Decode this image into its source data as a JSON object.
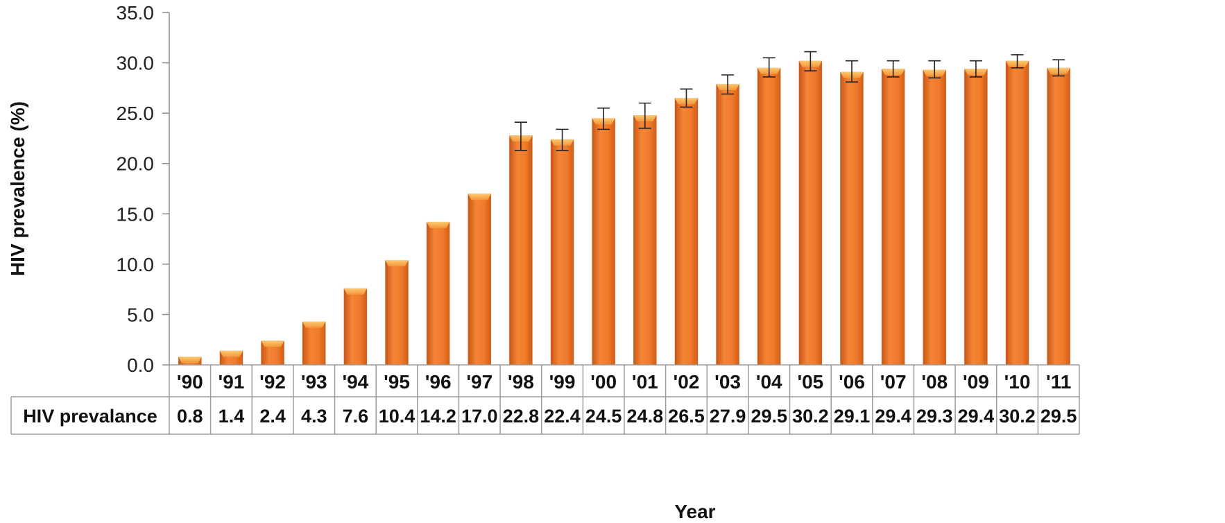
{
  "chart_data": {
    "type": "bar",
    "categories": [
      "'90",
      "'91",
      "'92",
      "'93",
      "'94",
      "'95",
      "'96",
      "'97",
      "'98",
      "'99",
      "'00",
      "'01",
      "'02",
      "'03",
      "'04",
      "'05",
      "'06",
      "'07",
      "'08",
      "'09",
      "'10",
      "'11"
    ],
    "series": [
      {
        "name": "HIV prevalance",
        "values": [
          0.8,
          1.4,
          2.4,
          4.3,
          7.6,
          10.4,
          14.2,
          17.0,
          22.8,
          22.4,
          24.5,
          24.8,
          26.5,
          27.9,
          29.5,
          30.2,
          29.1,
          29.4,
          29.3,
          29.4,
          30.2,
          29.5
        ],
        "value_labels": [
          "0.8",
          "1.4",
          "2.4",
          "4.3",
          "7.6",
          "10.4",
          "14.2",
          "17.0",
          "22.8",
          "22.4",
          "24.5",
          "24.8",
          "26.5",
          "27.9",
          "29.5",
          "30.2",
          "29.1",
          "29.4",
          "29.3",
          "29.4",
          "30.2",
          "29.5"
        ],
        "error_high": [
          null,
          null,
          null,
          null,
          null,
          null,
          null,
          null,
          24.1,
          23.4,
          25.5,
          26.0,
          27.4,
          28.8,
          30.5,
          31.1,
          30.2,
          30.2,
          30.2,
          30.2,
          30.8,
          30.3
        ],
        "error_low": [
          null,
          null,
          null,
          null,
          null,
          null,
          null,
          null,
          21.3,
          21.3,
          23.4,
          23.5,
          25.6,
          26.9,
          28.6,
          29.2,
          28.1,
          28.6,
          28.5,
          28.6,
          29.5,
          28.7
        ],
        "color": "#f07a2a"
      }
    ],
    "title": "",
    "xlabel": "Year",
    "ylabel": "HIV prevalence  (%)",
    "ylim": [
      0,
      35
    ],
    "yticks": [
      "0.0",
      "5.0",
      "10.0",
      "15.0",
      "20.0",
      "25.0",
      "30.0",
      "35.0"
    ],
    "grid": false,
    "legend": "none",
    "data_table": true
  }
}
